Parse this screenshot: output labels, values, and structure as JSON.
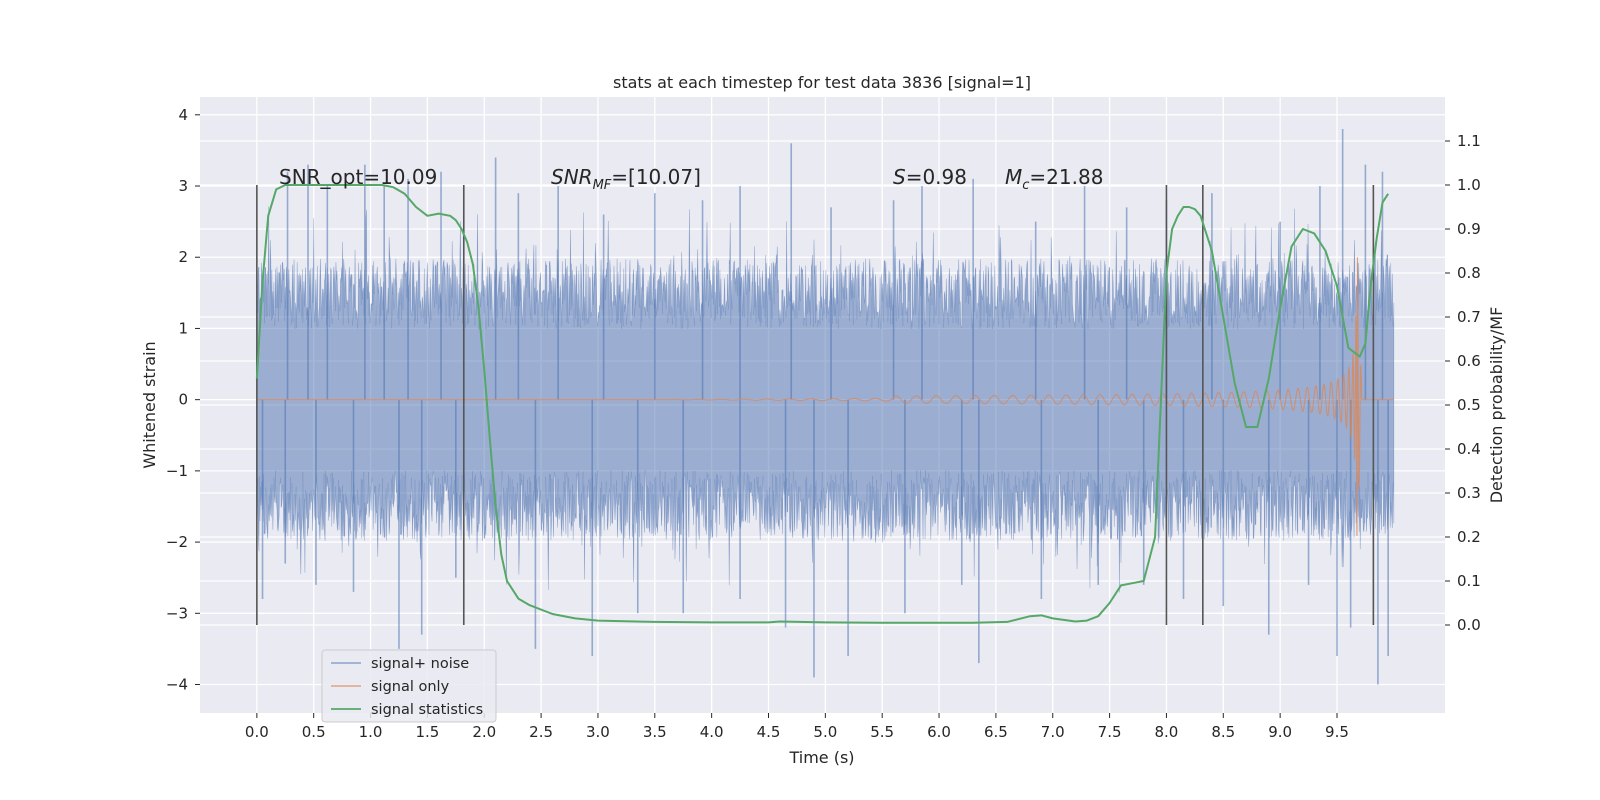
{
  "chart_data": {
    "type": "line",
    "title": "stats at each timestep for test data 3836 [signal=1]",
    "xlabel": "Time (s)",
    "ylabel": "Whitened strain",
    "y2label": "Detection probability/MF",
    "xlim": [
      -0.5,
      10.45
    ],
    "ylim": [
      -4.4,
      4.25
    ],
    "y2lim": [
      -0.2,
      1.2
    ],
    "grid": true,
    "legend_position": "lower-left",
    "x_ticks": [
      "0.0",
      "0.5",
      "1.0",
      "1.5",
      "2.0",
      "2.5",
      "3.0",
      "3.5",
      "4.0",
      "4.5",
      "5.0",
      "5.5",
      "6.0",
      "6.5",
      "7.0",
      "7.5",
      "8.0",
      "8.5",
      "9.0",
      "9.5"
    ],
    "y_ticks": [
      "−4",
      "−3",
      "−2",
      "−1",
      "0",
      "1",
      "2",
      "3",
      "4"
    ],
    "y2_ticks": [
      "0.0",
      "0.1",
      "0.2",
      "0.3",
      "0.4",
      "0.5",
      "0.6",
      "0.7",
      "0.8",
      "0.9",
      "1.0",
      "1.1"
    ],
    "annotations": {
      "snr_opt": "SNR_opt=10.09",
      "snr_mf_main": "SNR",
      "snr_mf_sub": "MF",
      "snr_mf_value": "=[10.07]",
      "s_main": "S",
      "s_value": "=0.98",
      "mc_main": "M",
      "mc_sub": "c",
      "mc_value": "=21.88"
    },
    "vertical_markers_x": [
      0.0,
      1.82,
      8.0,
      8.32,
      9.82
    ],
    "series": [
      {
        "name": "signal+ noise",
        "color": "#4c72b0",
        "x_range": [
          0.0,
          10.0
        ],
        "typical_envelope": [
          -1.8,
          1.8
        ],
        "spikes": [
          [
            0.27,
            3.2
          ],
          [
            0.45,
            3.3
          ],
          [
            0.62,
            3.0
          ],
          [
            0.95,
            3.3
          ],
          [
            1.12,
            3.0
          ],
          [
            1.33,
            3.1
          ],
          [
            1.62,
            3.2
          ],
          [
            2.1,
            3.4
          ],
          [
            2.3,
            2.9
          ],
          [
            2.65,
            3.0
          ],
          [
            3.05,
            2.6
          ],
          [
            3.5,
            2.9
          ],
          [
            3.92,
            2.8
          ],
          [
            4.25,
            3.0
          ],
          [
            4.7,
            3.6
          ],
          [
            5.05,
            2.7
          ],
          [
            5.6,
            2.8
          ],
          [
            5.85,
            3.0
          ],
          [
            6.3,
            3.1
          ],
          [
            6.85,
            2.5
          ],
          [
            7.28,
            3.0
          ],
          [
            7.65,
            2.7
          ],
          [
            8.0,
            2.8
          ],
          [
            8.4,
            2.9
          ],
          [
            9.0,
            2.5
          ],
          [
            9.35,
            3.0
          ],
          [
            9.55,
            3.8
          ],
          [
            9.75,
            3.3
          ],
          [
            9.9,
            3.2
          ],
          [
            0.05,
            -2.8
          ],
          [
            0.25,
            -2.3
          ],
          [
            0.52,
            -2.6
          ],
          [
            0.85,
            -2.7
          ],
          [
            1.25,
            -3.5
          ],
          [
            1.45,
            -3.3
          ],
          [
            1.75,
            -2.5
          ],
          [
            2.45,
            -3.5
          ],
          [
            2.95,
            -3.6
          ],
          [
            3.35,
            -3.0
          ],
          [
            3.75,
            -3.0
          ],
          [
            4.25,
            -2.8
          ],
          [
            4.65,
            -3.2
          ],
          [
            4.9,
            -3.9
          ],
          [
            5.2,
            -3.6
          ],
          [
            5.7,
            -3.0
          ],
          [
            6.2,
            -2.6
          ],
          [
            6.35,
            -3.7
          ],
          [
            6.9,
            -2.8
          ],
          [
            7.4,
            -2.6
          ],
          [
            7.8,
            -2.6
          ],
          [
            8.15,
            -2.8
          ],
          [
            8.5,
            -2.9
          ],
          [
            8.9,
            -3.3
          ],
          [
            9.25,
            -2.6
          ],
          [
            9.5,
            -3.6
          ],
          [
            9.62,
            -3.2
          ],
          [
            9.86,
            -4.0
          ],
          [
            9.95,
            -3.6
          ]
        ]
      },
      {
        "name": "signal only",
        "color": "#dd8452",
        "x_range": [
          0.0,
          10.0
        ],
        "chirp_start": 5.6,
        "merger_time": 9.68,
        "peak_amplitude": 2.0
      },
      {
        "name": "signal statistics",
        "color": "#55a868",
        "axis": "right",
        "x": [
          0.0,
          0.05,
          0.1,
          0.17,
          0.25,
          0.4,
          0.6,
          0.8,
          1.0,
          1.1,
          1.2,
          1.3,
          1.4,
          1.5,
          1.6,
          1.7,
          1.75,
          1.8,
          1.85,
          1.9,
          1.95,
          2.0,
          2.05,
          2.1,
          2.15,
          2.2,
          2.3,
          2.4,
          2.6,
          2.8,
          3.0,
          3.5,
          4.0,
          4.5,
          4.6,
          5.0,
          5.5,
          6.0,
          6.3,
          6.6,
          6.8,
          6.9,
          7.0,
          7.2,
          7.3,
          7.4,
          7.5,
          7.6,
          7.7,
          7.8,
          7.9,
          8.0,
          8.05,
          8.1,
          8.15,
          8.2,
          8.25,
          8.3,
          8.4,
          8.5,
          8.6,
          8.7,
          8.8,
          8.9,
          9.0,
          9.1,
          9.2,
          9.3,
          9.4,
          9.5,
          9.6,
          9.7,
          9.75,
          9.8,
          9.85,
          9.9,
          9.95
        ],
        "values": [
          0.56,
          0.78,
          0.93,
          0.99,
          1.0,
          1.0,
          1.0,
          1.0,
          1.0,
          1.0,
          0.995,
          0.98,
          0.95,
          0.93,
          0.935,
          0.93,
          0.92,
          0.9,
          0.87,
          0.82,
          0.72,
          0.58,
          0.42,
          0.27,
          0.16,
          0.1,
          0.06,
          0.045,
          0.025,
          0.015,
          0.01,
          0.007,
          0.006,
          0.006,
          0.008,
          0.006,
          0.005,
          0.005,
          0.005,
          0.007,
          0.02,
          0.022,
          0.015,
          0.008,
          0.01,
          0.02,
          0.05,
          0.09,
          0.095,
          0.1,
          0.2,
          0.8,
          0.9,
          0.93,
          0.95,
          0.95,
          0.945,
          0.93,
          0.85,
          0.7,
          0.55,
          0.45,
          0.45,
          0.56,
          0.72,
          0.86,
          0.9,
          0.89,
          0.85,
          0.77,
          0.63,
          0.61,
          0.64,
          0.78,
          0.88,
          0.96,
          0.98
        ]
      }
    ]
  }
}
